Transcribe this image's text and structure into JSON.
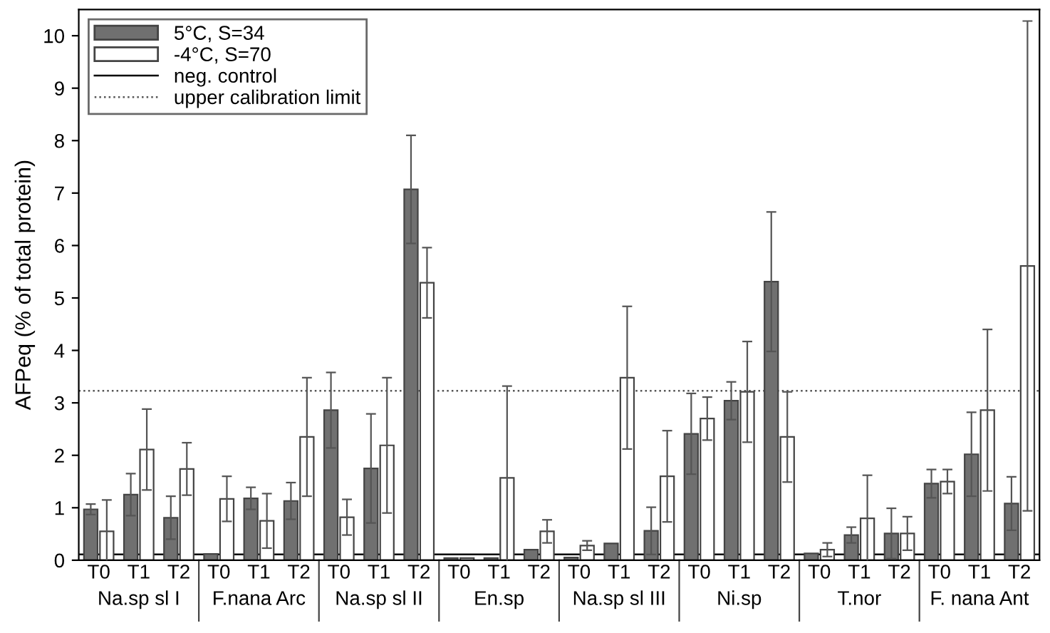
{
  "chart_data": {
    "type": "bar",
    "ylabel": "AFPeq (% of total protein)",
    "categories": [
      "T0",
      "T1",
      "T2",
      "T0",
      "T1",
      "T2",
      "T0",
      "T1",
      "T2",
      "T0",
      "T1",
      "T2",
      "T0",
      "T1",
      "T2",
      "T0",
      "T1",
      "T2",
      "T0",
      "T1",
      "T2",
      "T0",
      "T1",
      "T2"
    ],
    "annotations": [
      "Na.sp sl I",
      "F.nana Arc",
      "Na.sp sl II",
      "En.sp",
      "Na.sp sl III",
      "Ni.sp",
      "T.nor",
      "F. nana Ant"
    ],
    "series": [
      {
        "name": "5°C, S=34",
        "color": "#707070",
        "values": [
          0.97,
          1.25,
          0.81,
          0.12,
          1.18,
          1.13,
          2.86,
          1.75,
          7.07,
          0.04,
          0.04,
          0.2,
          0.05,
          0.32,
          0.56,
          2.41,
          3.04,
          5.31,
          0.13,
          0.48,
          0.51,
          1.46,
          2.02,
          1.08
        ],
        "errors": [
          0.1,
          0.4,
          0.41,
          null,
          0.21,
          0.35,
          0.72,
          1.04,
          1.03,
          null,
          null,
          null,
          null,
          null,
          0.45,
          0.77,
          0.36,
          1.33,
          null,
          0.15,
          0.48,
          0.27,
          0.8,
          0.51
        ]
      },
      {
        "name": "-4°C, S=70",
        "color": "#ffffff",
        "values": [
          0.55,
          2.11,
          1.74,
          1.17,
          0.75,
          2.35,
          0.82,
          2.19,
          5.29,
          0.04,
          1.57,
          0.55,
          0.28,
          3.48,
          1.6,
          2.7,
          3.21,
          2.35,
          0.2,
          0.8,
          0.51,
          1.5,
          2.86,
          5.61
        ],
        "errors": [
          0.6,
          0.77,
          0.5,
          0.43,
          0.52,
          1.13,
          0.34,
          1.29,
          0.67,
          null,
          1.75,
          0.22,
          0.09,
          1.36,
          0.87,
          0.41,
          0.96,
          0.86,
          0.13,
          0.82,
          0.32,
          0.23,
          1.54,
          4.67
        ]
      }
    ],
    "ref_lines": [
      {
        "axis": "y",
        "value": 0.11,
        "label": "neg. control",
        "color": "#000000",
        "line_style": "solid"
      },
      {
        "axis": "y",
        "value": 3.23,
        "label": "upper calibration limit",
        "color": "#555555",
        "line_style": "dotted"
      }
    ],
    "ylim": [
      0,
      10.5
    ],
    "yticks": [
      0,
      1,
      2,
      3,
      4,
      5,
      6,
      7,
      8,
      9,
      10
    ],
    "legend": "top left",
    "grid": false
  }
}
